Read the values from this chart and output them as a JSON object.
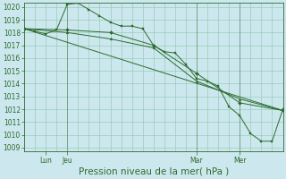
{
  "bg_color": "#cce8ee",
  "grid_color": "#99ccbb",
  "line_color": "#2d6a2d",
  "marker_color": "#2d6a2d",
  "xlabel": "Pression niveau de la mer( hPa )",
  "xlabel_fontsize": 7.5,
  "ylim": [
    1009,
    1020
  ],
  "yticks": [
    1009,
    1010,
    1011,
    1012,
    1013,
    1014,
    1015,
    1016,
    1017,
    1018,
    1019,
    1020
  ],
  "xlim": [
    0,
    72
  ],
  "vlines": [
    12,
    48,
    60
  ],
  "xtick_positions": [
    6,
    12,
    48,
    60
  ],
  "xtick_labels": [
    "Lun",
    "Jeu",
    "Mar",
    "Mer"
  ],
  "series1_x": [
    0,
    3,
    6,
    9,
    12,
    15,
    18,
    21,
    24,
    27,
    30,
    33,
    36,
    39,
    42,
    45,
    48,
    51,
    54,
    57,
    60,
    63,
    66,
    69,
    72
  ],
  "series1_y": [
    1018.3,
    1018.1,
    1017.9,
    1018.2,
    1020.2,
    1020.3,
    1019.8,
    1019.3,
    1018.8,
    1018.5,
    1018.5,
    1018.3,
    1017.0,
    1016.5,
    1016.4,
    1015.5,
    1014.4,
    1014.2,
    1013.8,
    1012.2,
    1011.5,
    1010.1,
    1009.5,
    1009.5,
    1012.0
  ],
  "series2_x": [
    0,
    12,
    24,
    36,
    48,
    60,
    72
  ],
  "series2_y": [
    1018.3,
    1018.2,
    1018.0,
    1017.0,
    1014.8,
    1012.5,
    1011.9
  ],
  "series3_x": [
    0,
    12,
    24,
    36,
    48,
    60,
    72
  ],
  "series3_y": [
    1018.3,
    1018.0,
    1017.5,
    1016.8,
    1014.2,
    1012.8,
    1011.9
  ],
  "series4_x": [
    0,
    72
  ],
  "series4_y": [
    1018.3,
    1011.9
  ]
}
